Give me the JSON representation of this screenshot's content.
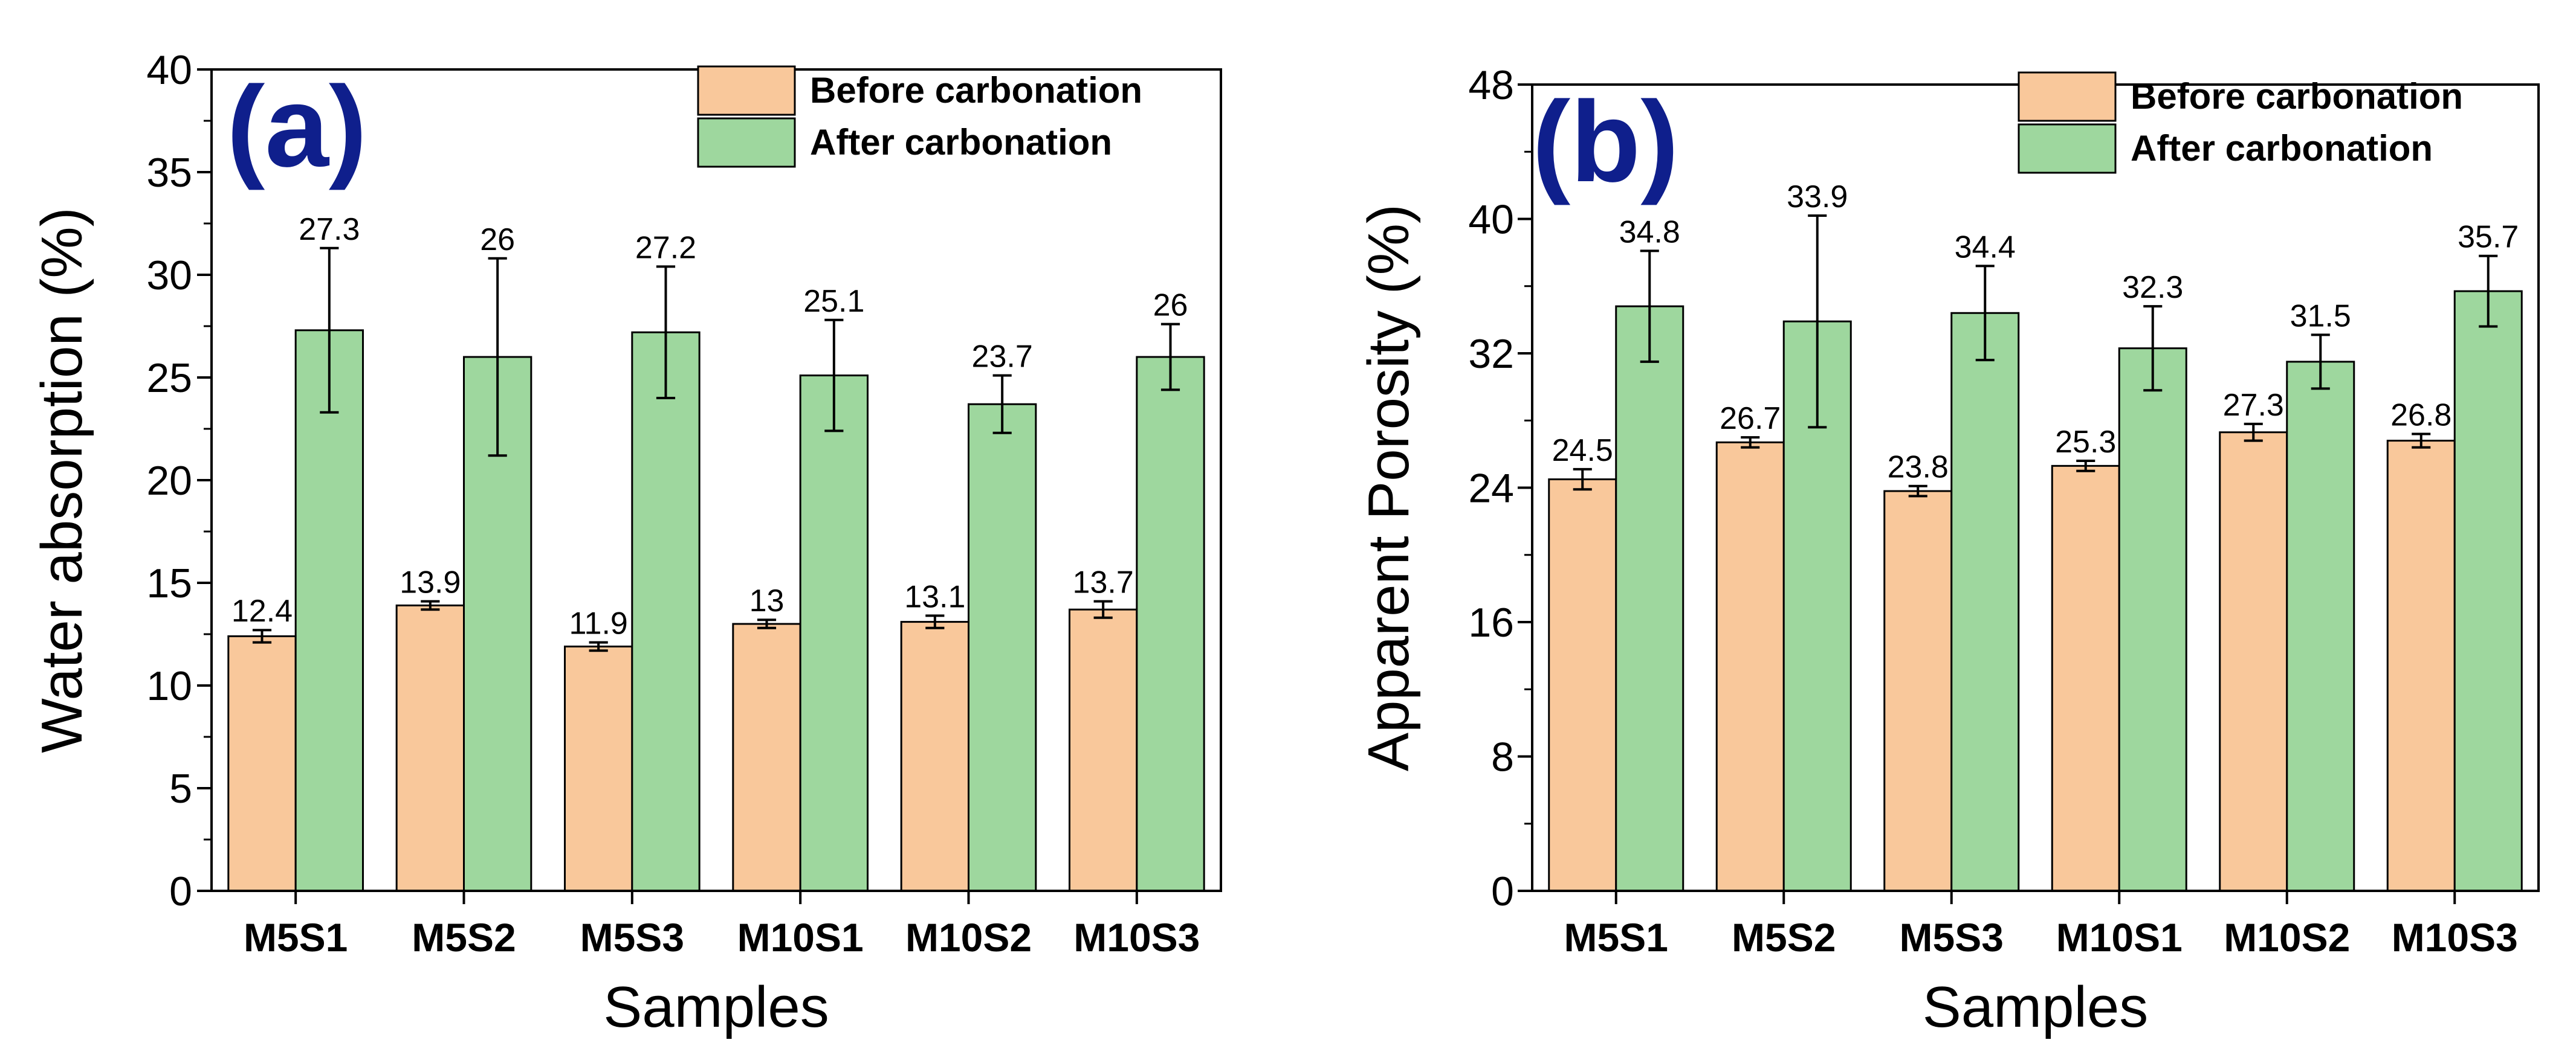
{
  "colors": {
    "before": "#F9C89B",
    "after": "#9ED79E",
    "panel_label": "#0F1F8C",
    "axis": "#000000"
  },
  "chart_data": [
    {
      "type": "bar",
      "panel_label": "(a)",
      "xlabel": "Samples",
      "ylabel": "Water absorption (%)",
      "ylim": [
        0,
        40
      ],
      "yticks": [
        0,
        5,
        10,
        15,
        20,
        25,
        30,
        35,
        40
      ],
      "categories": [
        "M5S1",
        "M5S2",
        "M5S3",
        "M10S1",
        "M10S2",
        "M10S3"
      ],
      "legend_position": "top-right",
      "series": [
        {
          "name": "Before carbonation",
          "values": [
            12.4,
            13.9,
            11.9,
            13,
            13.1,
            13.7
          ],
          "labels": [
            "12.4",
            "13.9",
            "11.9",
            "13",
            "13.1",
            "13.7"
          ],
          "errors": [
            0.3,
            0.2,
            0.2,
            0.2,
            0.3,
            0.4
          ]
        },
        {
          "name": "After carbonation",
          "values": [
            27.3,
            26,
            27.2,
            25.1,
            23.7,
            26
          ],
          "labels": [
            "27.3",
            "26",
            "27.2",
            "25.1",
            "23.7",
            "26"
          ],
          "errors": [
            4.0,
            4.8,
            3.2,
            2.7,
            1.4,
            1.6
          ]
        }
      ]
    },
    {
      "type": "bar",
      "panel_label": "(b)",
      "xlabel": "Samples",
      "ylabel": "Apparent Porosity (%)",
      "ylim": [
        0,
        48
      ],
      "yticks": [
        0,
        8,
        16,
        24,
        32,
        40,
        48
      ],
      "categories": [
        "M5S1",
        "M5S2",
        "M5S3",
        "M10S1",
        "M10S2",
        "M10S3"
      ],
      "legend_position": "top-right",
      "series": [
        {
          "name": "Before carbonation",
          "values": [
            24.5,
            26.7,
            23.8,
            25.3,
            27.3,
            26.8
          ],
          "labels": [
            "24.5",
            "26.7",
            "23.8",
            "25.3",
            "27.3",
            "26.8"
          ],
          "errors": [
            0.6,
            0.3,
            0.3,
            0.3,
            0.5,
            0.4
          ]
        },
        {
          "name": "After carbonation",
          "values": [
            34.8,
            33.9,
            34.4,
            32.3,
            31.5,
            35.7
          ],
          "labels": [
            "34.8",
            "33.9",
            "34.4",
            "32.3",
            "31.5",
            "35.7"
          ],
          "errors": [
            3.3,
            6.3,
            2.8,
            2.5,
            1.6,
            2.1
          ]
        }
      ]
    }
  ]
}
